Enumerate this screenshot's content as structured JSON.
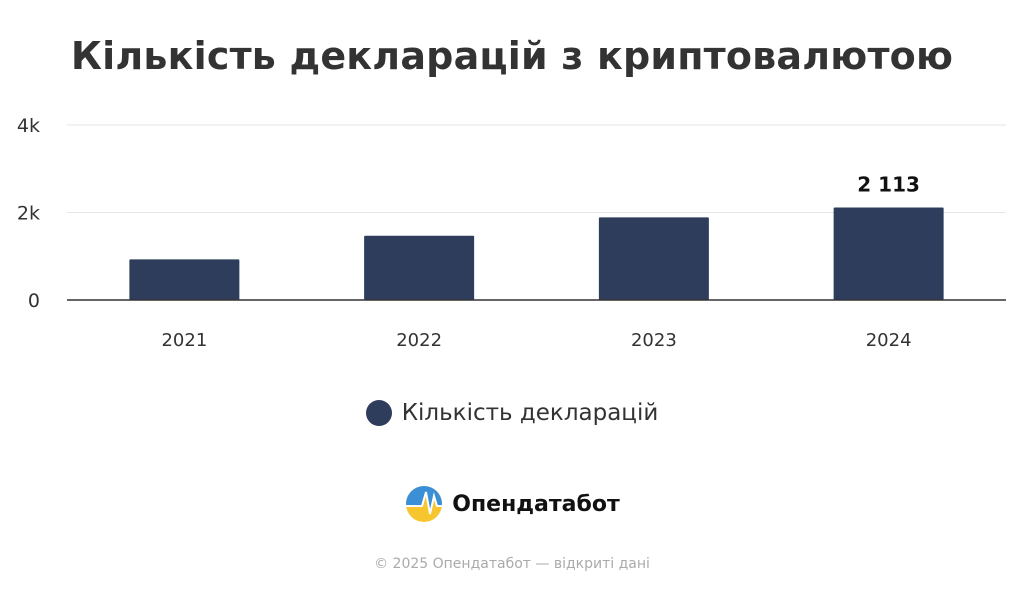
{
  "title": "Кількість декларацій з криптовалютою",
  "colors": {
    "bar": "#2e3d5c",
    "grid": "#e6e6e6",
    "axis": "#333333",
    "text": "#333333"
  },
  "chart_data": {
    "type": "bar",
    "categories": [
      "2021",
      "2022",
      "2023",
      "2024"
    ],
    "series": [
      {
        "name": "Кількість декларацій",
        "values": [
          930,
          1470,
          1890,
          2113
        ]
      }
    ],
    "data_labels": [
      "",
      "",
      "",
      "2 113"
    ],
    "yticks": [
      {
        "value": 0,
        "label": "0"
      },
      {
        "value": 2000,
        "label": "2k"
      },
      {
        "value": 4000,
        "label": "4k"
      }
    ],
    "ylim": [
      0,
      4000
    ],
    "grid": true,
    "legend": "bottom-center"
  },
  "legend": {
    "label": "Кількість декларацій"
  },
  "brand": {
    "name": "Опендатабот",
    "icon": "opendatabot-logo-icon"
  },
  "footer": {
    "text": "© 2025 Опендатабот — відкриті дані"
  }
}
